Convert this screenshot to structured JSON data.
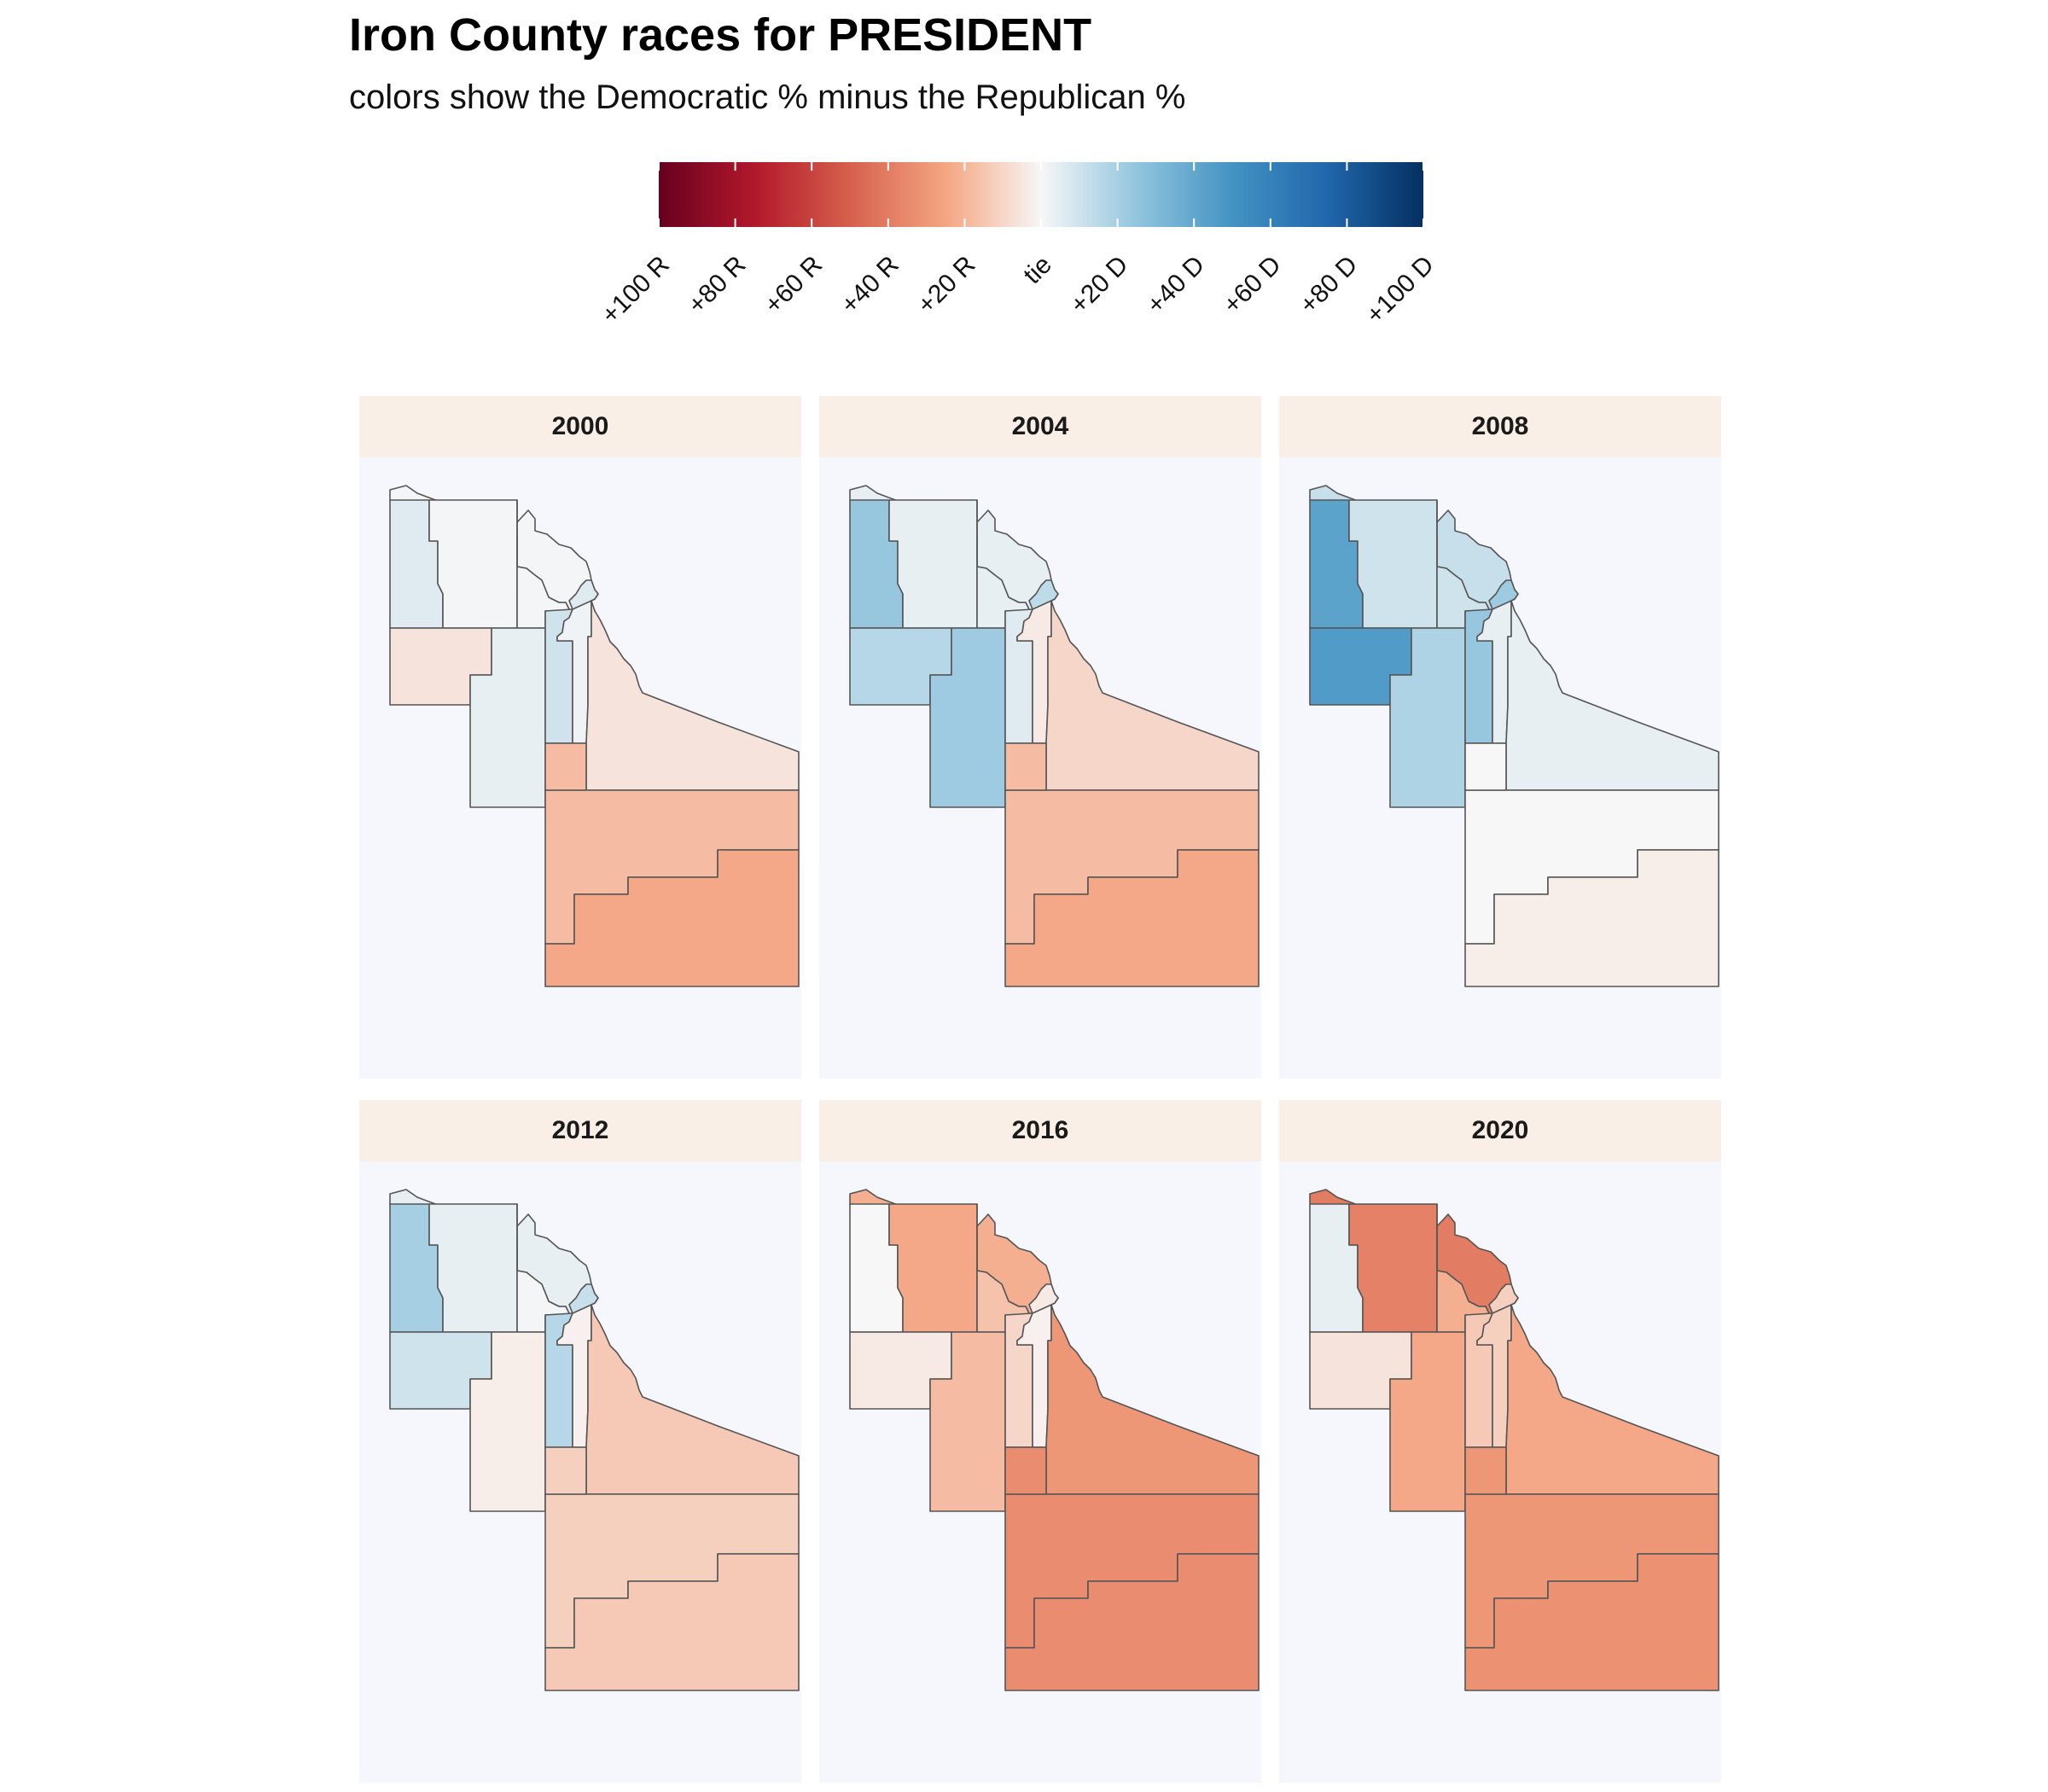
{
  "title": "Iron County races for PRESIDENT",
  "subtitle": "colors show the Democratic % minus the Republican %",
  "legend": {
    "type": "diverging-color-scale",
    "min": -100,
    "max": 100,
    "tick_values": [
      -100,
      -80,
      -60,
      -40,
      -20,
      0,
      20,
      40,
      60,
      80,
      100
    ],
    "tick_labels": [
      "+100 R",
      "+80 R",
      "+60 R",
      "+40 R",
      "+20 R",
      "tie",
      "+20 D",
      "+40 D",
      "+60 D",
      "+80 D",
      "+100 D"
    ],
    "colors": {
      "strong_republican": "#67001f",
      "republican": "#b2182b",
      "lean_republican": "#d6604d",
      "light_republican": "#f4a582",
      "tie": "#f7f7f7",
      "light_democrat": "#92c5de",
      "lean_democrat": "#4393c3",
      "democrat": "#2166ac",
      "strong_democrat": "#053061"
    }
  },
  "styles": {
    "strip_fill": "#f9efe6",
    "panel_fill": "#f6f7fc",
    "boundary_color": "#555555"
  },
  "chart_data": {
    "type": "choropleth-facets",
    "region_order": [
      "north-strip",
      "northwest-small",
      "north-central",
      "northeast",
      "city-small",
      "west-large",
      "west-central",
      "city-wedge",
      "central-strip",
      "east-strip",
      "east-large",
      "south-large-north",
      "south-large-south"
    ],
    "facets": [
      {
        "year": "2000",
        "margins": {
          "north-strip": 1,
          "northwest-small": 6,
          "north-central": 1,
          "northeast": 1,
          "city-small": 6,
          "west-large": -6,
          "west-central": 4,
          "city-wedge": 10,
          "central-strip": 2,
          "east-strip": -6,
          "east-large": -18,
          "south-large-north": -18,
          "south-large-south": -24
        }
      },
      {
        "year": "2004",
        "margins": {
          "north-strip": 4,
          "northwest-small": 24,
          "north-central": 4,
          "northeast": 4,
          "city-small": 14,
          "west-large": 16,
          "west-central": 22,
          "city-wedge": 6,
          "central-strip": -4,
          "east-strip": -10,
          "east-large": -18,
          "south-large-north": -18,
          "south-large-south": -24
        }
      },
      {
        "year": "2008",
        "margins": {
          "north-strip": 12,
          "northwest-small": 42,
          "north-central": 10,
          "northeast": 10,
          "city-small": 22,
          "west-large": 46,
          "west-central": 18,
          "city-wedge": 24,
          "central-strip": 4,
          "east-strip": 4,
          "east-large": 0,
          "south-large-north": 0,
          "south-large-south": -3
        }
      },
      {
        "year": "2012",
        "margins": {
          "north-strip": 4,
          "northwest-small": 20,
          "north-central": 4,
          "northeast": 1,
          "city-small": 12,
          "west-large": 10,
          "west-central": -3,
          "city-wedge": 16,
          "central-strip": -2,
          "east-strip": -14,
          "east-large": -12,
          "south-large-north": -12,
          "south-large-south": -14
        }
      },
      {
        "year": "2016",
        "margins": {
          "north-strip": -22,
          "northwest-small": 0,
          "north-central": -24,
          "northeast": -16,
          "city-small": -4,
          "west-large": -4,
          "west-central": -18,
          "city-wedge": -10,
          "central-strip": -2,
          "east-strip": -30,
          "east-large": -34,
          "south-large-north": -34,
          "south-large-south": -34
        }
      },
      {
        "year": "2020",
        "margins": {
          "north-strip": -40,
          "northwest-small": 4,
          "north-central": -38,
          "northeast": -22,
          "city-small": -12,
          "west-large": -6,
          "west-central": -24,
          "city-wedge": -14,
          "central-strip": -12,
          "east-strip": -24,
          "east-large": -30,
          "south-large-north": -30,
          "south-large-south": -32
        }
      }
    ]
  }
}
